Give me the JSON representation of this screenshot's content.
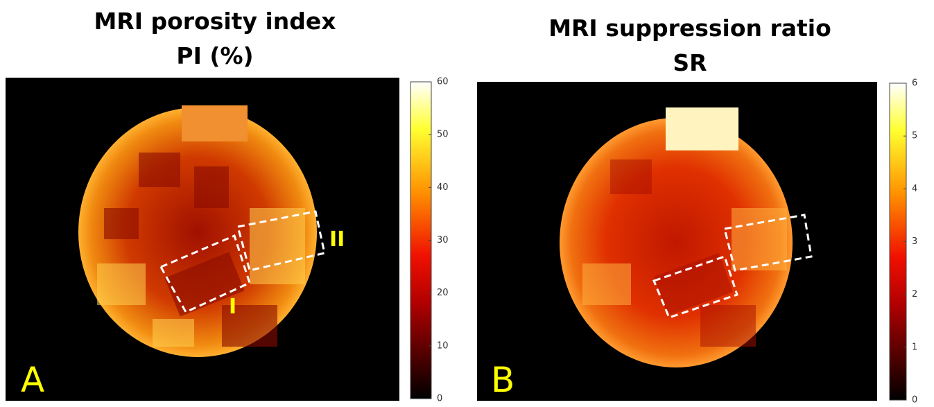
{
  "chart_data": [
    {
      "type": "heatmap",
      "title": "MRI porosity index",
      "subtitle": "PI (%)",
      "panel_label": "A",
      "regions": [
        "I",
        "II"
      ],
      "colormap": "hot",
      "clim": [
        0,
        60
      ],
      "colorbar_ticks": [
        0,
        10,
        20,
        30,
        40,
        50,
        60
      ]
    },
    {
      "type": "heatmap",
      "title": "MRI suppression ratio",
      "subtitle": "SR",
      "panel_label": "B",
      "colormap": "hot",
      "clim": [
        0,
        6
      ],
      "colorbar_ticks": [
        0,
        1,
        2,
        3,
        4,
        5,
        6
      ]
    }
  ]
}
